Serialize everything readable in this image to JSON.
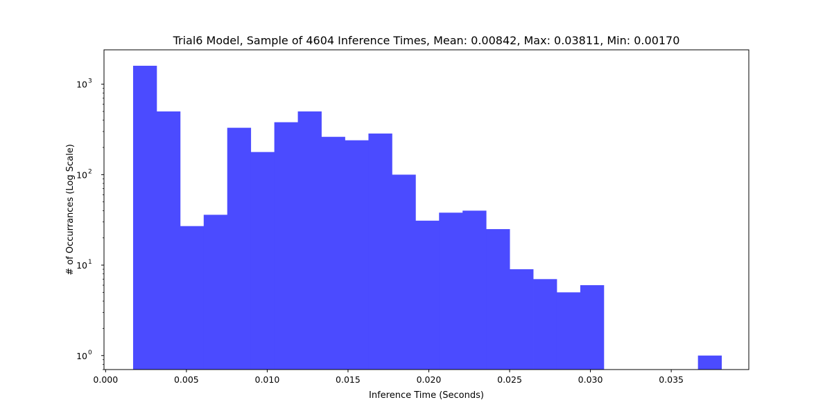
{
  "chart_data": {
    "type": "bar",
    "title": "Trial6 Model, Sample of 4604 Inference Times, Mean: 0.00842, Max: 0.03811, Min: 0.00170",
    "xlabel": "Inference Time (Seconds)",
    "ylabel": "# of Occurrances (Log Scale)",
    "xlim": [
      -0.0001,
      0.0398
    ],
    "ylim": [
      0.7,
      2400
    ],
    "yscale": "log",
    "grid": false,
    "bar_color": "#4b4bff",
    "x_ticks": [
      {
        "value": 0.0,
        "label": "0.000"
      },
      {
        "value": 0.005,
        "label": "0.005"
      },
      {
        "value": 0.01,
        "label": "0.010"
      },
      {
        "value": 0.015,
        "label": "0.015"
      },
      {
        "value": 0.02,
        "label": "0.020"
      },
      {
        "value": 0.025,
        "label": "0.025"
      },
      {
        "value": 0.03,
        "label": "0.030"
      },
      {
        "value": 0.035,
        "label": "0.035"
      }
    ],
    "y_ticks": [
      {
        "value": 1,
        "base": "10",
        "exp": "0"
      },
      {
        "value": 10,
        "base": "10",
        "exp": "1"
      },
      {
        "value": 100,
        "base": "10",
        "exp": "2"
      },
      {
        "value": 1000,
        "base": "10",
        "exp": "3"
      }
    ],
    "bin_start": 0.0017,
    "bin_end": 0.03811,
    "counts": [
      1600,
      500,
      27,
      36,
      330,
      178,
      380,
      500,
      262,
      240,
      285,
      100,
      31,
      38,
      40,
      25,
      9,
      7,
      5,
      6,
      0,
      0,
      0,
      0,
      1
    ]
  }
}
